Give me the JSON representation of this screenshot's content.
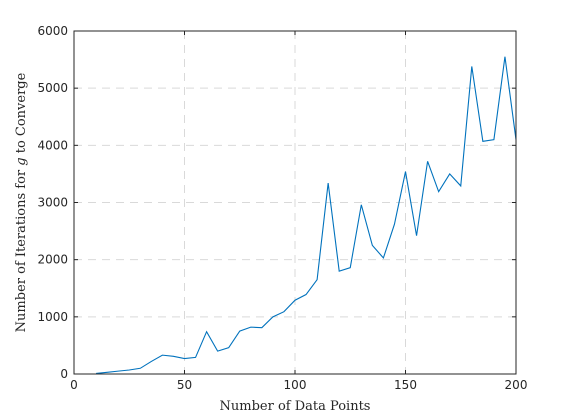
{
  "chart_data": {
    "type": "line",
    "title": "",
    "xlabel": "Number of Data Points",
    "ylabel": "Number of Iterations for g to Converge",
    "xlim": [
      0,
      200
    ],
    "ylim": [
      0,
      6000
    ],
    "xticks": [
      0,
      50,
      100,
      150,
      200
    ],
    "yticks": [
      0,
      1000,
      2000,
      3000,
      4000,
      5000,
      6000
    ],
    "grid": true,
    "series": [
      {
        "color": "#0072BD",
        "x": [
          10,
          15,
          20,
          25,
          30,
          35,
          40,
          45,
          50,
          55,
          60,
          65,
          70,
          75,
          80,
          85,
          90,
          95,
          100,
          105,
          110,
          115,
          120,
          125,
          130,
          135,
          140,
          145,
          150,
          155,
          160,
          165,
          170,
          175,
          180,
          185,
          190,
          195,
          200
        ],
        "y": [
          10,
          30,
          50,
          70,
          100,
          220,
          330,
          310,
          270,
          290,
          740,
          400,
          460,
          750,
          820,
          810,
          1000,
          1090,
          1290,
          1390,
          1650,
          3340,
          1800,
          1860,
          2960,
          2250,
          2030,
          2620,
          3540,
          2420,
          3720,
          3190,
          3500,
          3290,
          5380,
          4070,
          4100,
          5550,
          4100
        ]
      }
    ]
  }
}
